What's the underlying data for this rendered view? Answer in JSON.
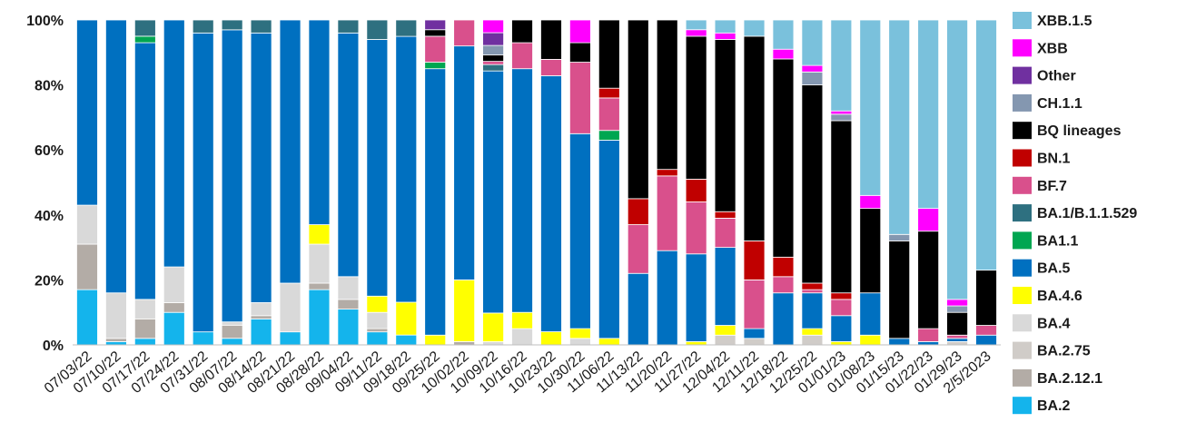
{
  "chart_data": {
    "type": "bar",
    "stacked": true,
    "normalized": true,
    "title": "",
    "xlabel": "",
    "ylabel": "",
    "ylim": [
      0,
      100
    ],
    "yticks": [
      "0%",
      "20%",
      "40%",
      "60%",
      "80%",
      "100%"
    ],
    "grid": false,
    "legend": "right",
    "categories": [
      "07/03/22",
      "07/10/22",
      "07/17/22",
      "07/24/22",
      "07/31/22",
      "08/07/22",
      "08/14/22",
      "08/21/22",
      "08/28/22",
      "09/04/22",
      "09/11/22",
      "09/18/22",
      "09/25/22",
      "10/02/22",
      "10/09/22",
      "10/16/22",
      "10/23/22",
      "10/30/22",
      "11/06/22",
      "11/13/22",
      "11/20/22",
      "11/27/22",
      "12/04/22",
      "12/11/22",
      "12/18/22",
      "12/25/22",
      "01/01/23",
      "01/08/23",
      "01/15/23",
      "01/22/23",
      "01/29/23",
      "2/5/2023"
    ],
    "series": [
      {
        "name": "BA.2",
        "color": "#14b4ec",
        "values": [
          17,
          1,
          2,
          10,
          4,
          2,
          8,
          4,
          17,
          11,
          4,
          3,
          0,
          0,
          0,
          0,
          0,
          0,
          0,
          0,
          0,
          0,
          0,
          0,
          0,
          0,
          0,
          0,
          0,
          0,
          0,
          0
        ]
      },
      {
        "name": "BA.2.12.1",
        "color": "#b3aca6",
        "values": [
          14,
          1,
          6,
          3,
          0,
          4,
          1,
          0,
          2,
          3,
          1,
          0,
          0,
          1,
          0,
          0,
          0,
          0,
          0,
          0,
          0,
          0,
          0,
          0,
          0,
          0,
          0,
          0,
          0,
          0,
          0,
          0
        ]
      },
      {
        "name": "BA.2.75",
        "color": "#d0ccc8",
        "values": [
          0,
          0,
          0,
          0,
          0,
          0,
          0,
          0,
          0,
          0,
          0,
          0,
          0,
          0,
          0,
          0,
          0,
          0,
          0,
          0,
          0,
          0,
          3,
          2,
          0,
          3,
          0,
          0,
          0,
          0,
          1,
          0
        ]
      },
      {
        "name": "BA.4",
        "color": "#d9d9d9",
        "values": [
          12,
          14,
          6,
          11,
          0,
          1,
          4,
          15,
          12,
          7,
          5,
          0,
          0,
          0,
          1,
          5,
          0,
          2,
          0,
          0,
          0,
          0,
          0,
          0,
          0,
          0,
          0,
          0,
          0,
          0,
          0,
          0
        ]
      },
      {
        "name": "BA.4.6",
        "color": "#ffff00",
        "values": [
          0,
          0,
          0,
          0,
          0,
          0,
          0,
          0,
          6,
          0,
          5,
          10,
          3,
          19,
          9,
          5,
          4,
          3,
          2,
          0,
          0,
          1,
          3,
          0,
          0,
          2,
          1,
          3,
          0,
          0,
          0,
          0
        ]
      },
      {
        "name": "BA.5",
        "color": "#0070c0",
        "values": [
          57,
          84,
          79,
          76,
          92,
          89,
          83,
          81,
          63,
          75,
          79,
          81,
          82,
          72,
          76,
          75,
          78,
          60,
          61,
          22,
          29,
          27,
          24,
          3,
          16,
          11,
          8,
          13,
          2,
          1,
          1,
          3
        ]
      },
      {
        "name": "BA1.1",
        "color": "#00a651",
        "values": [
          0,
          0,
          2,
          0,
          0,
          0,
          0,
          0,
          0,
          0,
          0,
          0,
          2,
          0,
          0,
          0,
          0,
          0,
          3,
          0,
          0,
          0,
          0,
          0,
          0,
          0,
          0,
          0,
          0,
          0,
          0,
          0
        ]
      },
      {
        "name": "BA.1/B.1.1.529",
        "color": "#2e7080",
        "values": [
          0,
          0,
          5,
          0,
          4,
          3,
          4,
          0,
          0,
          4,
          6,
          5,
          0,
          0,
          2,
          0,
          0,
          0,
          0,
          0,
          0,
          0,
          0,
          0,
          0,
          0,
          0,
          0,
          0,
          0,
          0,
          0
        ]
      },
      {
        "name": "BF.7",
        "color": "#d9508c",
        "values": [
          0,
          0,
          0,
          0,
          0,
          0,
          0,
          0,
          0,
          0,
          0,
          0,
          8,
          8,
          1,
          8,
          5,
          22,
          10,
          15,
          23,
          16,
          9,
          15,
          5,
          1,
          5,
          0,
          0,
          4,
          1,
          3
        ]
      },
      {
        "name": "BN.1",
        "color": "#c00000",
        "values": [
          0,
          0,
          0,
          0,
          0,
          0,
          0,
          0,
          0,
          0,
          0,
          0,
          0,
          0,
          0,
          0,
          0,
          0,
          3,
          8,
          2,
          7,
          2,
          12,
          6,
          2,
          2,
          0,
          0,
          0,
          0,
          0
        ]
      },
      {
        "name": "BQ lineages",
        "color": "#000000",
        "values": [
          0,
          0,
          0,
          0,
          0,
          0,
          0,
          0,
          0,
          0,
          0,
          0,
          2,
          0,
          2,
          7,
          12,
          6,
          21,
          55,
          46,
          44,
          53,
          63,
          61,
          61,
          53,
          26,
          30,
          30,
          7,
          17
        ]
      },
      {
        "name": "CH.1.1",
        "color": "#8497b0",
        "values": [
          0,
          0,
          0,
          0,
          0,
          0,
          0,
          0,
          0,
          0,
          0,
          0,
          0,
          0,
          3,
          0,
          0,
          0,
          0,
          0,
          0,
          0,
          0,
          0,
          0,
          4,
          2,
          0,
          2,
          0,
          2,
          0
        ]
      },
      {
        "name": "Other",
        "color": "#7030a0",
        "values": [
          0,
          0,
          0,
          0,
          0,
          0,
          0,
          0,
          0,
          0,
          0,
          0,
          3,
          0,
          4,
          0,
          0,
          0,
          0,
          0,
          0,
          0,
          0,
          0,
          0,
          0,
          0,
          0,
          0,
          0,
          0,
          0
        ]
      },
      {
        "name": "XBB",
        "color": "#ff00ff",
        "values": [
          0,
          0,
          0,
          0,
          0,
          0,
          0,
          0,
          0,
          0,
          0,
          0,
          0,
          0,
          4,
          0,
          0,
          7,
          0,
          0,
          0,
          2,
          2,
          0,
          3,
          2,
          1,
          4,
          0,
          7,
          2,
          0
        ]
      },
      {
        "name": "XBB.1.5",
        "color": "#7ac1dc",
        "values": [
          0,
          0,
          0,
          0,
          0,
          0,
          0,
          0,
          0,
          0,
          0,
          0,
          0,
          0,
          0,
          0,
          0,
          0,
          0,
          0,
          0,
          3,
          4,
          5,
          9,
          14,
          28,
          54,
          66,
          58,
          86,
          77
        ]
      }
    ]
  }
}
